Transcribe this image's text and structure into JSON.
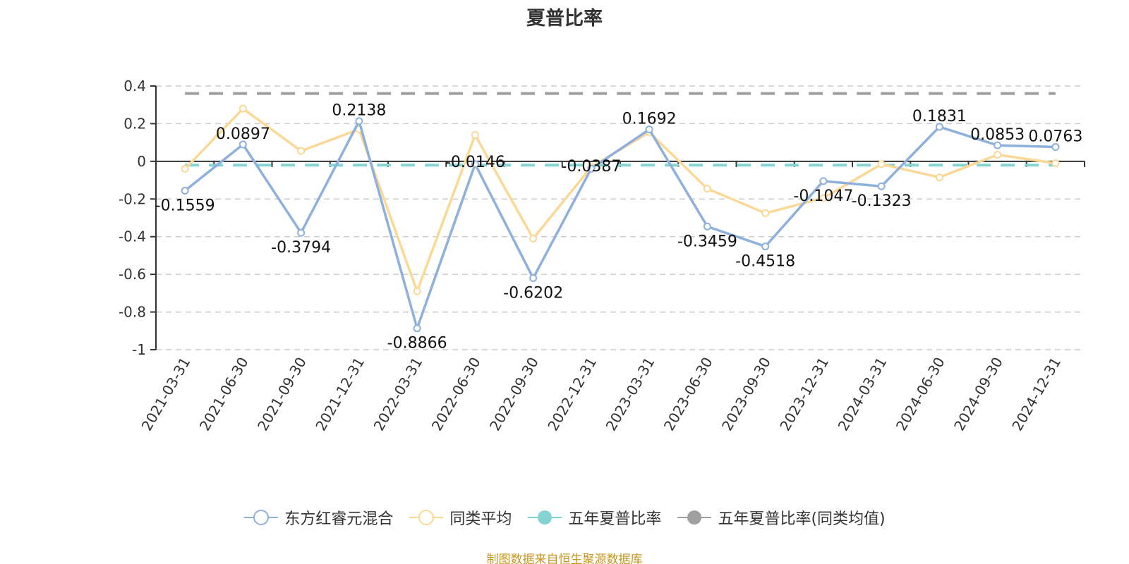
{
  "title": "夏普比率",
  "source_note": "制图数据来自恒生聚源数据库",
  "legend": [
    {
      "label": "东方红睿元混合",
      "color": "#8eb0dc",
      "marker": "hollow-circle"
    },
    {
      "label": "同类平均",
      "color": "#fcd897",
      "marker": "hollow-circle"
    },
    {
      "label": "五年夏普比率",
      "color": "#86d3d4",
      "marker": "filled-circle"
    },
    {
      "label": "五年夏普比率(同类均值)",
      "color": "#a0a0a0",
      "marker": "filled-circle"
    }
  ],
  "chart_data": {
    "type": "line",
    "title": "夏普比率",
    "xlabel": "",
    "ylabel": "",
    "ylim": [
      -1,
      0.4
    ],
    "yticks": [
      0.4,
      0.2,
      0,
      -0.2,
      -0.4,
      -0.6,
      -0.8,
      -1
    ],
    "ytick_labels": [
      "0.4",
      "0.2",
      "0",
      "-0.2",
      "-0.4",
      "-0.6",
      "-0.8",
      "-1"
    ],
    "grid": true,
    "legend_position": "bottom",
    "categories": [
      "2021-03-31",
      "2021-06-30",
      "2021-09-30",
      "2021-12-31",
      "2022-03-31",
      "2022-06-30",
      "2022-09-30",
      "2022-12-31",
      "2023-03-31",
      "2023-06-30",
      "2023-09-30",
      "2023-12-31",
      "2024-03-31",
      "2024-06-30",
      "2024-09-30",
      "2024-12-31"
    ],
    "series": [
      {
        "name": "东方红睿元混合",
        "color": "#8eb0dc",
        "show_labels": true,
        "values": [
          -0.1559,
          0.0897,
          -0.3794,
          0.2138,
          -0.8866,
          -0.0146,
          -0.6202,
          -0.0387,
          0.1692,
          -0.3459,
          -0.4518,
          -0.1047,
          -0.1323,
          0.1831,
          0.0853,
          0.0763
        ],
        "labels": [
          "-0.1559",
          "0.0897",
          "-0.3794",
          "0.2138",
          "-0.8866",
          "-0.0146",
          "-0.6202",
          "-0.0387",
          "0.1692",
          "-0.3459",
          "-0.4518",
          "-0.1047",
          "-0.1323",
          "0.1831",
          "0.0853",
          "0.0763"
        ]
      },
      {
        "name": "同类平均",
        "color": "#fcd897",
        "show_labels": false,
        "values": [
          -0.04,
          0.28,
          0.055,
          0.17,
          -0.69,
          0.14,
          -0.41,
          -0.03,
          0.155,
          -0.145,
          -0.275,
          -0.195,
          -0.015,
          -0.085,
          0.035,
          -0.01
        ]
      },
      {
        "name": "五年夏普比率",
        "color": "#86d3d4",
        "style": "dashed-constant",
        "values": [
          -0.02,
          -0.02,
          -0.02,
          -0.02,
          -0.02,
          -0.02,
          -0.02,
          -0.02,
          -0.02,
          -0.02,
          -0.02,
          -0.02,
          -0.02,
          -0.02,
          -0.02,
          -0.02
        ]
      },
      {
        "name": "五年夏普比率(同类均值)",
        "color": "#a0a0a0",
        "style": "dashed-constant",
        "values": [
          0.36,
          0.36,
          0.36,
          0.36,
          0.36,
          0.36,
          0.36,
          0.36,
          0.36,
          0.36,
          0.36,
          0.36,
          0.36,
          0.36,
          0.36,
          0.36
        ]
      }
    ]
  }
}
